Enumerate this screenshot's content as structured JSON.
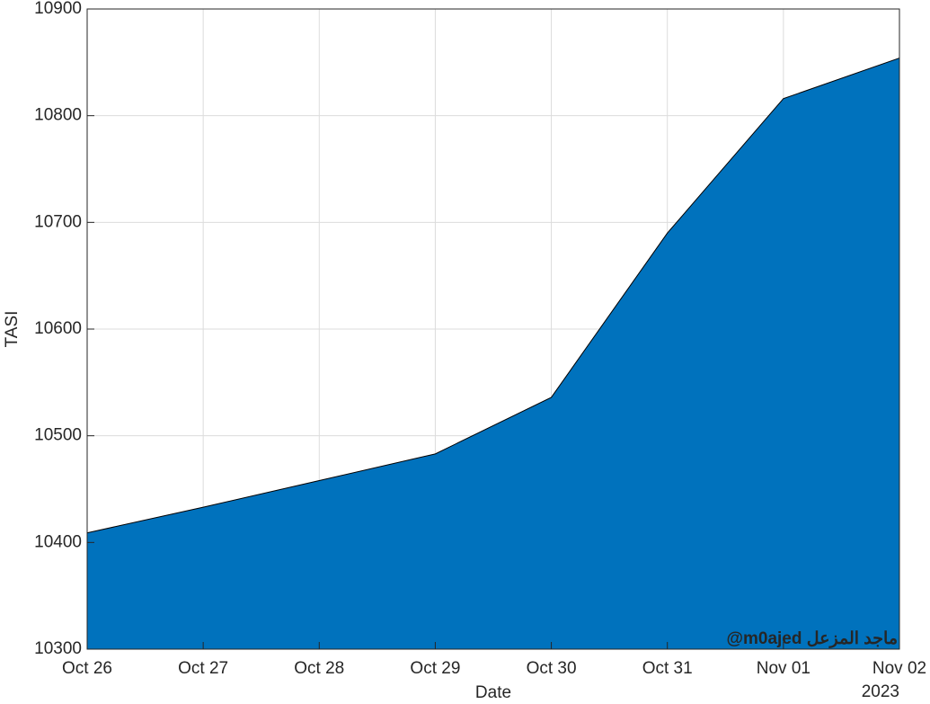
{
  "chart_data": {
    "type": "area",
    "x_label": "Date",
    "y_label": "TASI",
    "categories": [
      "Oct 26",
      "Oct 27",
      "Oct 28",
      "Oct 29",
      "Oct 30",
      "Oct 31",
      "Nov 01",
      "Nov 02"
    ],
    "year_label": "2023",
    "values": [
      10409,
      10433,
      10458,
      10483,
      10536,
      10690,
      10816,
      10854
    ],
    "color": "#0072bd",
    "ylim": [
      10300,
      10900
    ],
    "yticks": [
      10300,
      10400,
      10500,
      10600,
      10700,
      10800,
      10900
    ],
    "grid": true,
    "watermark": "@m0ajed ماجد المزعل"
  }
}
